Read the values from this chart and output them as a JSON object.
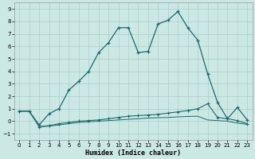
{
  "xlabel": "Humidex (Indice chaleur)",
  "background_color": "#cce8e5",
  "grid_color": "#aacfcc",
  "line_color": "#1a6b6b",
  "xlim": [
    -0.5,
    23.5
  ],
  "ylim": [
    -1.5,
    9.5
  ],
  "ytick_min": -1,
  "ytick_max": 9,
  "xticks": [
    0,
    1,
    2,
    3,
    4,
    5,
    6,
    7,
    8,
    9,
    10,
    11,
    12,
    13,
    14,
    15,
    16,
    17,
    18,
    19,
    20,
    21,
    22,
    23
  ],
  "yticks": [
    -1,
    0,
    1,
    2,
    3,
    4,
    5,
    6,
    7,
    8,
    9
  ],
  "line1_x": [
    0,
    1,
    2,
    3,
    4,
    5,
    6,
    7,
    8,
    9,
    10,
    11,
    12,
    13,
    14,
    15,
    16,
    17,
    18,
    19,
    20,
    21,
    22,
    23
  ],
  "line1_y": [
    0.8,
    0.8,
    -0.3,
    0.6,
    1.0,
    2.5,
    3.2,
    4.0,
    5.5,
    6.3,
    7.5,
    7.5,
    5.5,
    5.6,
    7.8,
    8.1,
    8.8,
    7.5,
    6.5,
    3.8,
    1.5,
    0.2,
    1.1,
    0.1
  ],
  "line2_x": [
    0,
    1,
    2,
    3,
    4,
    5,
    6,
    7,
    8,
    9,
    10,
    11,
    12,
    13,
    14,
    15,
    16,
    17,
    18,
    19,
    20,
    21,
    22,
    23
  ],
  "line2_y": [
    0.8,
    0.8,
    -0.45,
    -0.35,
    -0.2,
    -0.1,
    0.0,
    0.05,
    0.1,
    0.2,
    0.3,
    0.4,
    0.45,
    0.5,
    0.55,
    0.65,
    0.75,
    0.85,
    1.0,
    1.4,
    0.3,
    0.2,
    0.05,
    -0.2
  ],
  "line3_x": [
    2,
    3,
    4,
    5,
    6,
    7,
    8,
    9,
    10,
    11,
    12,
    13,
    14,
    15,
    16,
    17,
    18,
    19,
    20,
    21,
    22,
    23
  ],
  "line3_y": [
    -0.45,
    -0.4,
    -0.3,
    -0.2,
    -0.1,
    -0.05,
    0.0,
    0.05,
    0.1,
    0.15,
    0.2,
    0.25,
    0.28,
    0.3,
    0.35,
    0.38,
    0.4,
    0.1,
    0.05,
    0.0,
    -0.15,
    -0.25
  ]
}
